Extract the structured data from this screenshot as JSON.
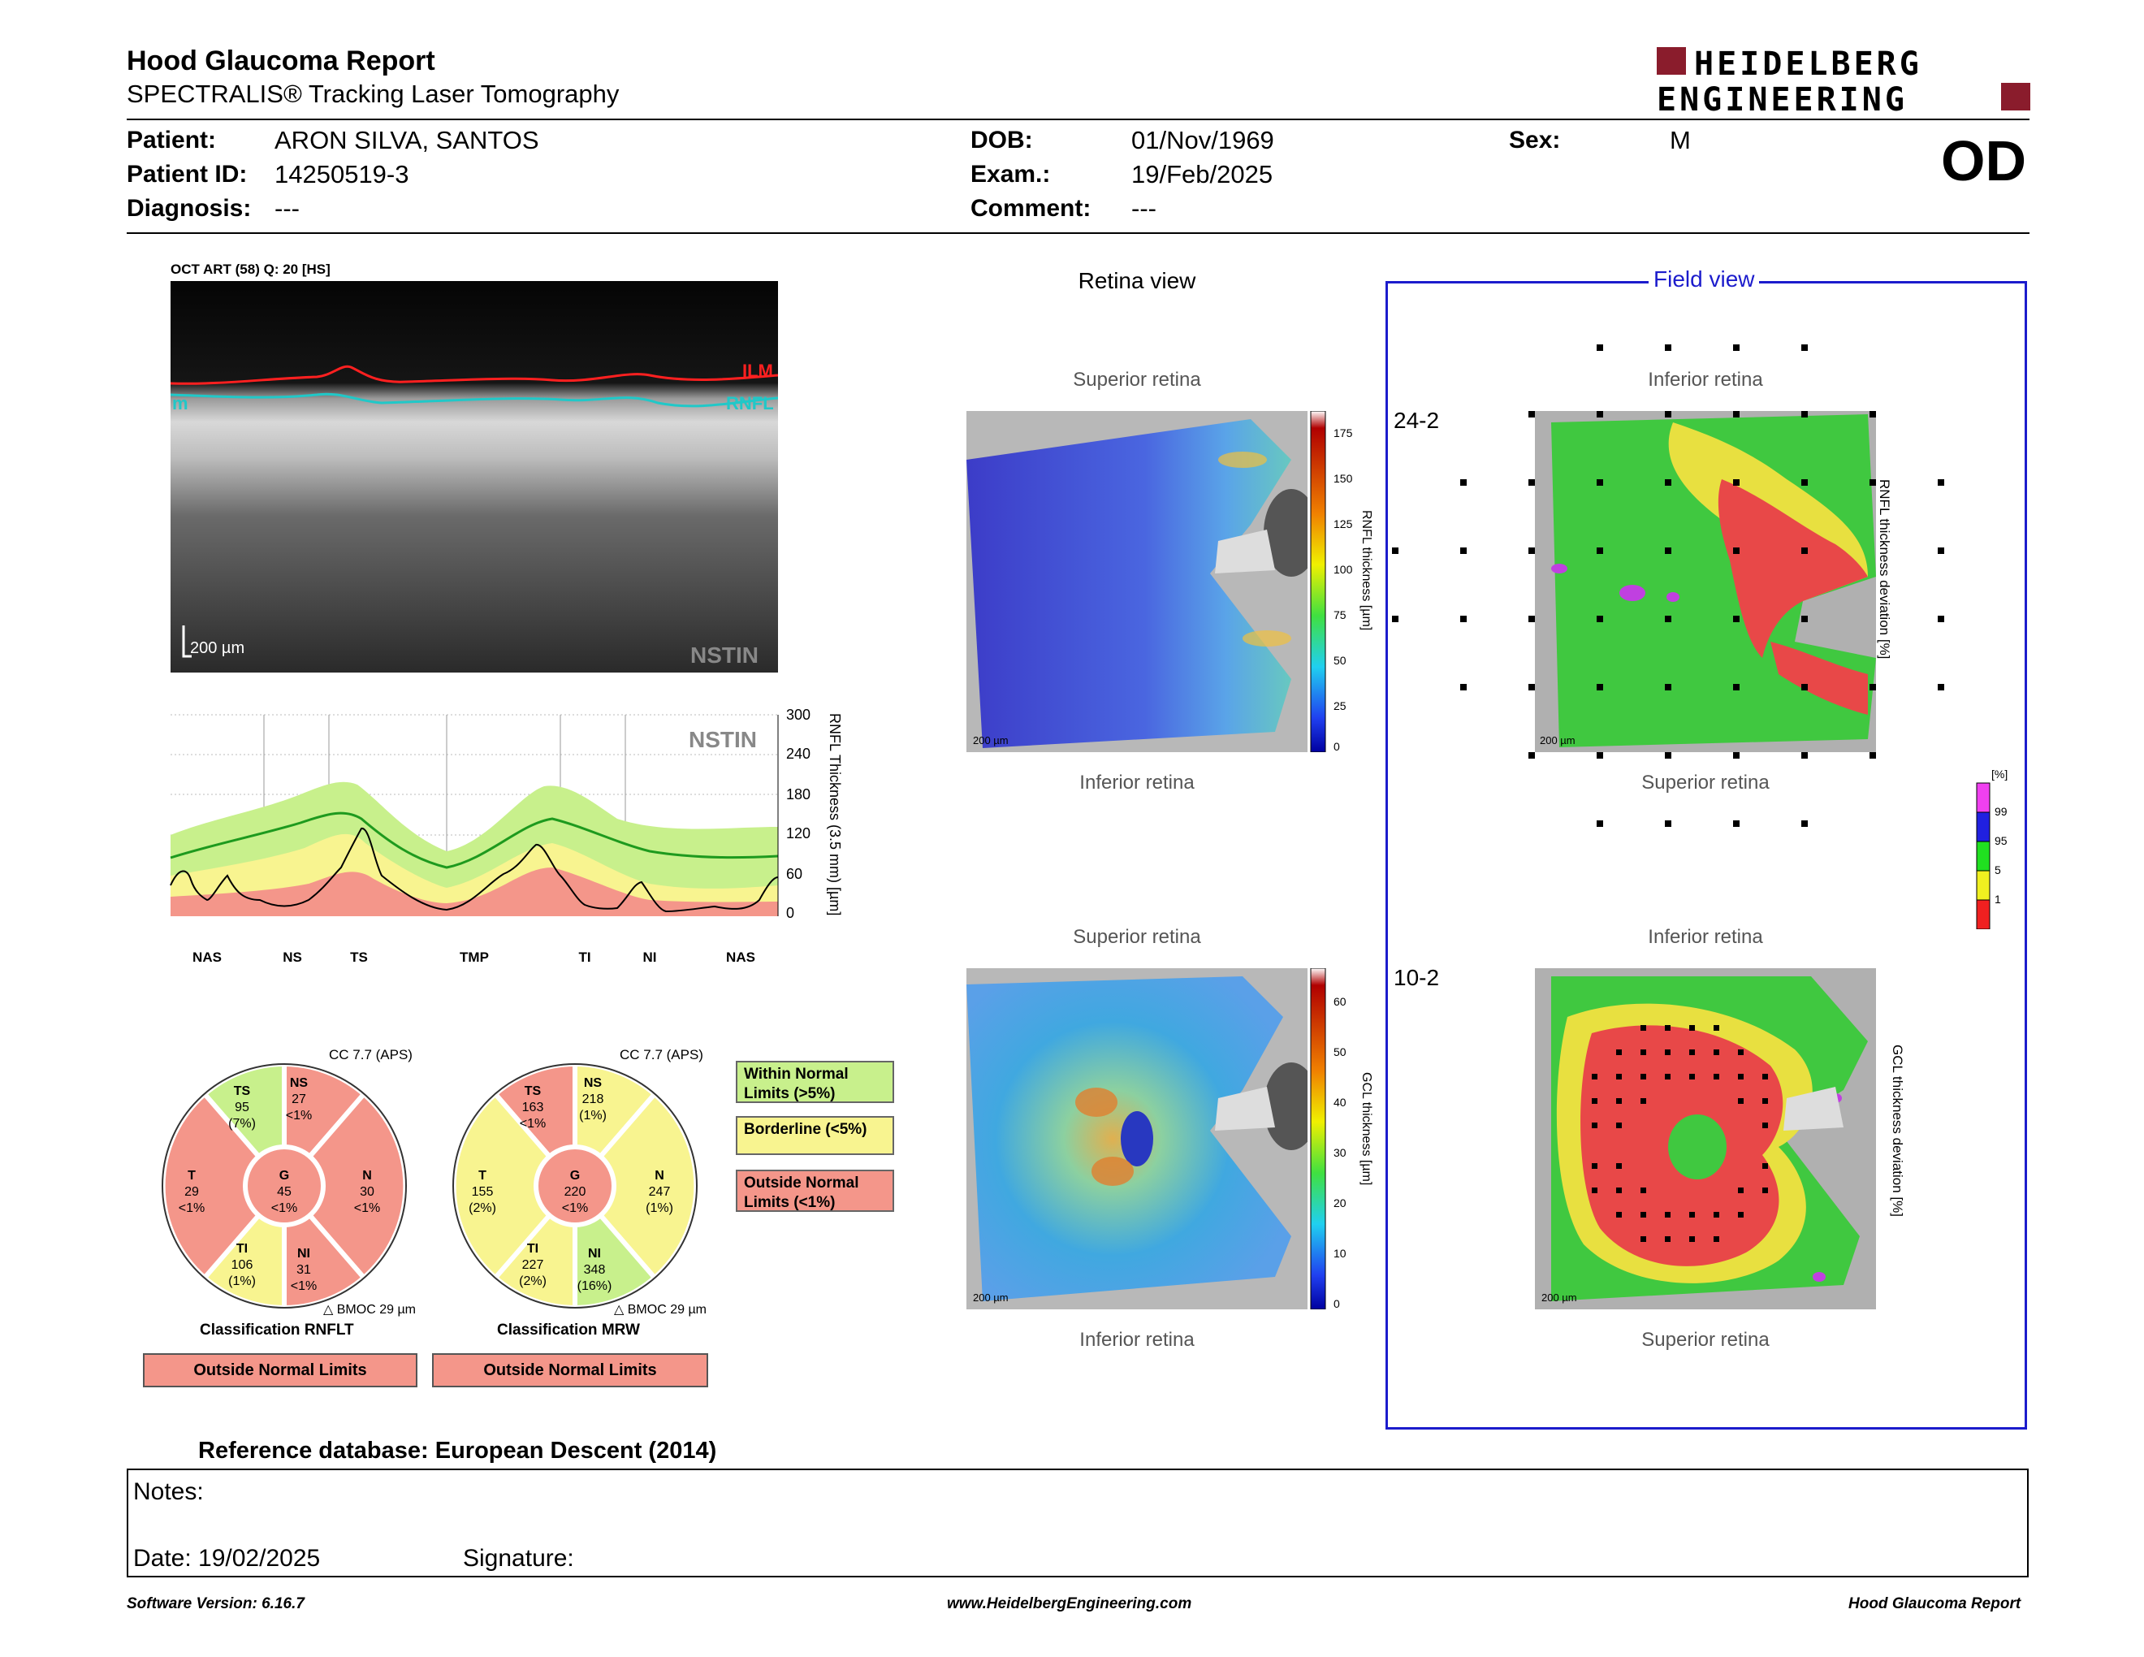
{
  "header": {
    "title": "Hood Glaucoma Report",
    "subtitle": "SPECTRALIS® Tracking Laser Tomography",
    "logo_line1": "HEIDELBERG",
    "logo_line2": "ENGINEERING",
    "eye": "OD"
  },
  "patient": {
    "patient_label": "Patient:",
    "patient_value": "ARON SILVA, SANTOS",
    "id_label": "Patient ID:",
    "id_value": "14250519-3",
    "diagnosis_label": "Diagnosis:",
    "diagnosis_value": "---",
    "dob_label": "DOB:",
    "dob_value": "01/Nov/1969",
    "exam_label": "Exam.:",
    "exam_value": "19/Feb/2025",
    "comment_label": "Comment:",
    "comment_value": "---",
    "sex_label": "Sex:",
    "sex_value": "M"
  },
  "oct": {
    "caption": "OCT ART (58) Q: 20 [HS]",
    "ilm": "ILM",
    "rnfl": "RNFL",
    "left_tag": "m",
    "scale": "200 µm",
    "nstin": "NSTIN"
  },
  "profile": {
    "nstin": "NSTIN",
    "ylabel": "RNFL Thickness (3.5 mm) [µm]",
    "yticks": [
      "300",
      "240",
      "180",
      "120",
      "60",
      "0"
    ],
    "sectors": [
      "NAS",
      "NS",
      "TS",
      "TMP",
      "TI",
      "NI",
      "NAS"
    ]
  },
  "rnflt": {
    "cc": "CC 7.7 (APS)",
    "title": "Classification RNFLT",
    "result": "Outside Normal Limits",
    "bmoc": "BMOC 29 µm",
    "sectors": {
      "TS": {
        "name": "TS",
        "value": "95",
        "pct": "(7%)"
      },
      "NS": {
        "name": "NS",
        "value": "27",
        "pct": "<1%"
      },
      "T": {
        "name": "T",
        "value": "29",
        "pct": "<1%"
      },
      "G": {
        "name": "G",
        "value": "45",
        "pct": "<1%"
      },
      "N": {
        "name": "N",
        "value": "30",
        "pct": "<1%"
      },
      "TI": {
        "name": "TI",
        "value": "106",
        "pct": "(1%)"
      },
      "NI": {
        "name": "NI",
        "value": "31",
        "pct": "<1%"
      }
    }
  },
  "mrw": {
    "cc": "CC 7.7 (APS)",
    "title": "Classification MRW",
    "result": "Outside Normal Limits",
    "bmoc": "BMOC 29 µm",
    "sectors": {
      "TS": {
        "name": "TS",
        "value": "163",
        "pct": "<1%"
      },
      "NS": {
        "name": "NS",
        "value": "218",
        "pct": "(1%)"
      },
      "T": {
        "name": "T",
        "value": "155",
        "pct": "(2%)"
      },
      "G": {
        "name": "G",
        "value": "220",
        "pct": "<1%"
      },
      "N": {
        "name": "N",
        "value": "247",
        "pct": "(1%)"
      },
      "TI": {
        "name": "TI",
        "value": "227",
        "pct": "(2%)"
      },
      "NI": {
        "name": "NI",
        "value": "348",
        "pct": "(16%)"
      }
    }
  },
  "legend": {
    "within": "Within Normal Limits (>5%)",
    "borderline": "Borderline (<5%)",
    "outside": "Outside Normal Limits (<1%)"
  },
  "retina_view": {
    "title": "Retina view",
    "superior": "Superior retina",
    "inferior": "Inferior retina",
    "scale": "200 µm",
    "rnfl_label": "RNFL thickness [µm]",
    "rnfl_ticks": [
      "175",
      "150",
      "125",
      "100",
      "75",
      "50",
      "25",
      "0"
    ],
    "gcl_label": "GCL thickness [µm]",
    "gcl_ticks": [
      "60",
      "50",
      "40",
      "30",
      "20",
      "10",
      "0"
    ]
  },
  "field_view": {
    "title": "Field view",
    "inferior": "Inferior retina",
    "superior": "Superior retina",
    "label_24": "24-2",
    "label_10": "10-2",
    "rnfl_dev": "RNFL thickness deviation [%]",
    "gcl_dev": "GCL thickness deviation [%]",
    "pct_unit": "[%]",
    "pct_ticks": [
      "99",
      "95",
      "5",
      "1"
    ],
    "scale": "200 µm"
  },
  "reference": "Reference database: European Descent (2014)",
  "notes": {
    "notes_label": "Notes:",
    "date_label": "Date: 19/02/2025",
    "signature_label": "Signature:"
  },
  "footer": {
    "version": "Software Version: 6.16.7",
    "url": "www.HeidelbergEngineering.com",
    "report": "Hood Glaucoma Report"
  },
  "colors": {
    "normal": "#c8f08c",
    "borderline": "#f8f490",
    "outside": "#f4968a",
    "accent_blue": "#1c1ccc",
    "logo_red": "#8a1c2c"
  }
}
